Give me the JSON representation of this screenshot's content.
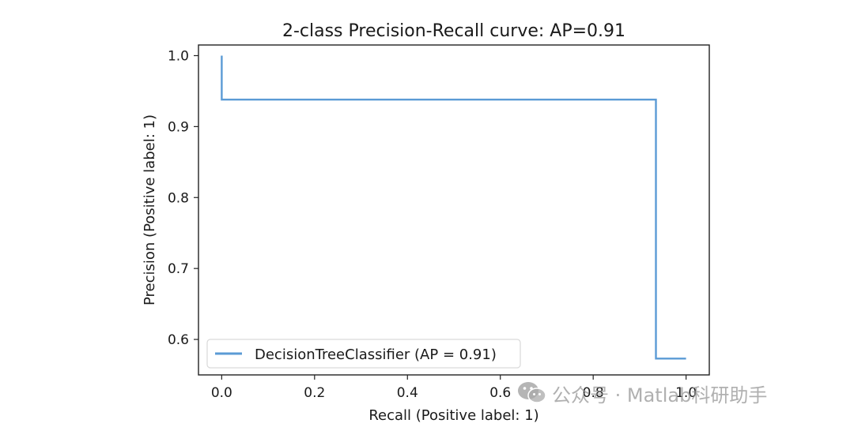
{
  "chart_data": {
    "type": "line",
    "title": "2-class Precision-Recall curve: AP=0.91",
    "xlabel": "Recall (Positive label: 1)",
    "ylabel": "Precision (Positive label: 1)",
    "xlim": [
      -0.05,
      1.05
    ],
    "ylim": [
      0.55,
      1.015
    ],
    "xticks": [
      "0.0",
      "0.2",
      "0.4",
      "0.6",
      "0.8",
      "1.0"
    ],
    "yticks": [
      "0.6",
      "0.7",
      "0.8",
      "0.9",
      "1.0"
    ],
    "series": [
      {
        "name": "DecisionTreeClassifier (AP = 0.91)",
        "color": "#5b9bd5",
        "drawstyle": "steps",
        "x": [
          0.0,
          0.0,
          0.935,
          0.935,
          1.0
        ],
        "y": [
          1.0,
          0.938,
          0.938,
          0.573,
          0.573
        ]
      }
    ],
    "legend": {
      "position": "lower-left",
      "label": "DecisionTreeClassifier (AP = 0.91)"
    },
    "grid": false
  },
  "watermark": {
    "icon": "wechat-icon",
    "text": "公众号 · Matlab科研助手"
  }
}
